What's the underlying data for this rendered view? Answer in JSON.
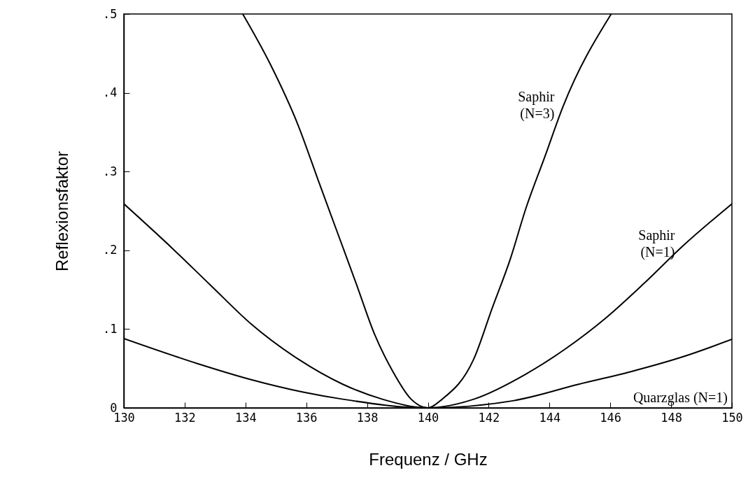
{
  "chart_data": {
    "type": "line",
    "xlabel": "Frequenz / GHz",
    "ylabel": "Reflexionsfaktor",
    "xlim": [
      130,
      150
    ],
    "xticks": [
      130,
      132,
      134,
      136,
      138,
      140,
      142,
      144,
      146,
      148,
      150
    ],
    "ylim": [
      0,
      0.5
    ],
    "yticks": [
      0,
      {
        "value": 0.1,
        "label": ".1"
      },
      {
        "value": 0.2,
        "label": ".2"
      },
      {
        "value": 0.3,
        "label": ".3"
      },
      {
        "value": 0.4,
        "label": ".4"
      },
      {
        "value": 0.5,
        "label": ".5"
      }
    ],
    "line_style": "solid",
    "marker": "none",
    "series": [
      {
        "name": "Saphir\n(N=3)",
        "color": "#000000",
        "x": [
          133.91,
          134.82,
          135.73,
          136.42,
          137.03,
          137.64,
          138.24,
          138.85,
          139.45,
          140,
          140.47,
          141.51,
          142.11,
          142.72,
          143.23,
          143.84,
          144.44,
          146.03
        ],
        "values": [
          0.5,
          0.436,
          0.359,
          0.286,
          0.222,
          0.158,
          0.094,
          0.046,
          0.011,
          0,
          0.011,
          0.062,
          0.126,
          0.19,
          0.254,
          0.318,
          0.382,
          0.5
        ]
      },
      {
        "name": "Saphir\n(N=1)",
        "color": "#000000",
        "x": [
          130,
          131.58,
          132.87,
          134.17,
          135.73,
          137.2,
          138.5,
          140,
          141.51,
          143.23,
          144.53,
          145.82,
          147.11,
          148.4,
          150
        ],
        "values": [
          0.259,
          0.203,
          0.155,
          0.107,
          0.062,
          0.03,
          0.011,
          0,
          0.011,
          0.043,
          0.075,
          0.113,
          0.158,
          0.206,
          0.259
        ]
      },
      {
        "name": "Quarzglas (N=1)",
        "color": "#000000",
        "x": [
          130,
          132.44,
          134.17,
          135.9,
          137.2,
          140,
          142.8,
          144.96,
          146.68,
          148.4,
          150
        ],
        "values": [
          0.088,
          0.056,
          0.036,
          0.02,
          0.011,
          0,
          0.009,
          0.03,
          0.046,
          0.065,
          0.087
        ]
      }
    ]
  }
}
